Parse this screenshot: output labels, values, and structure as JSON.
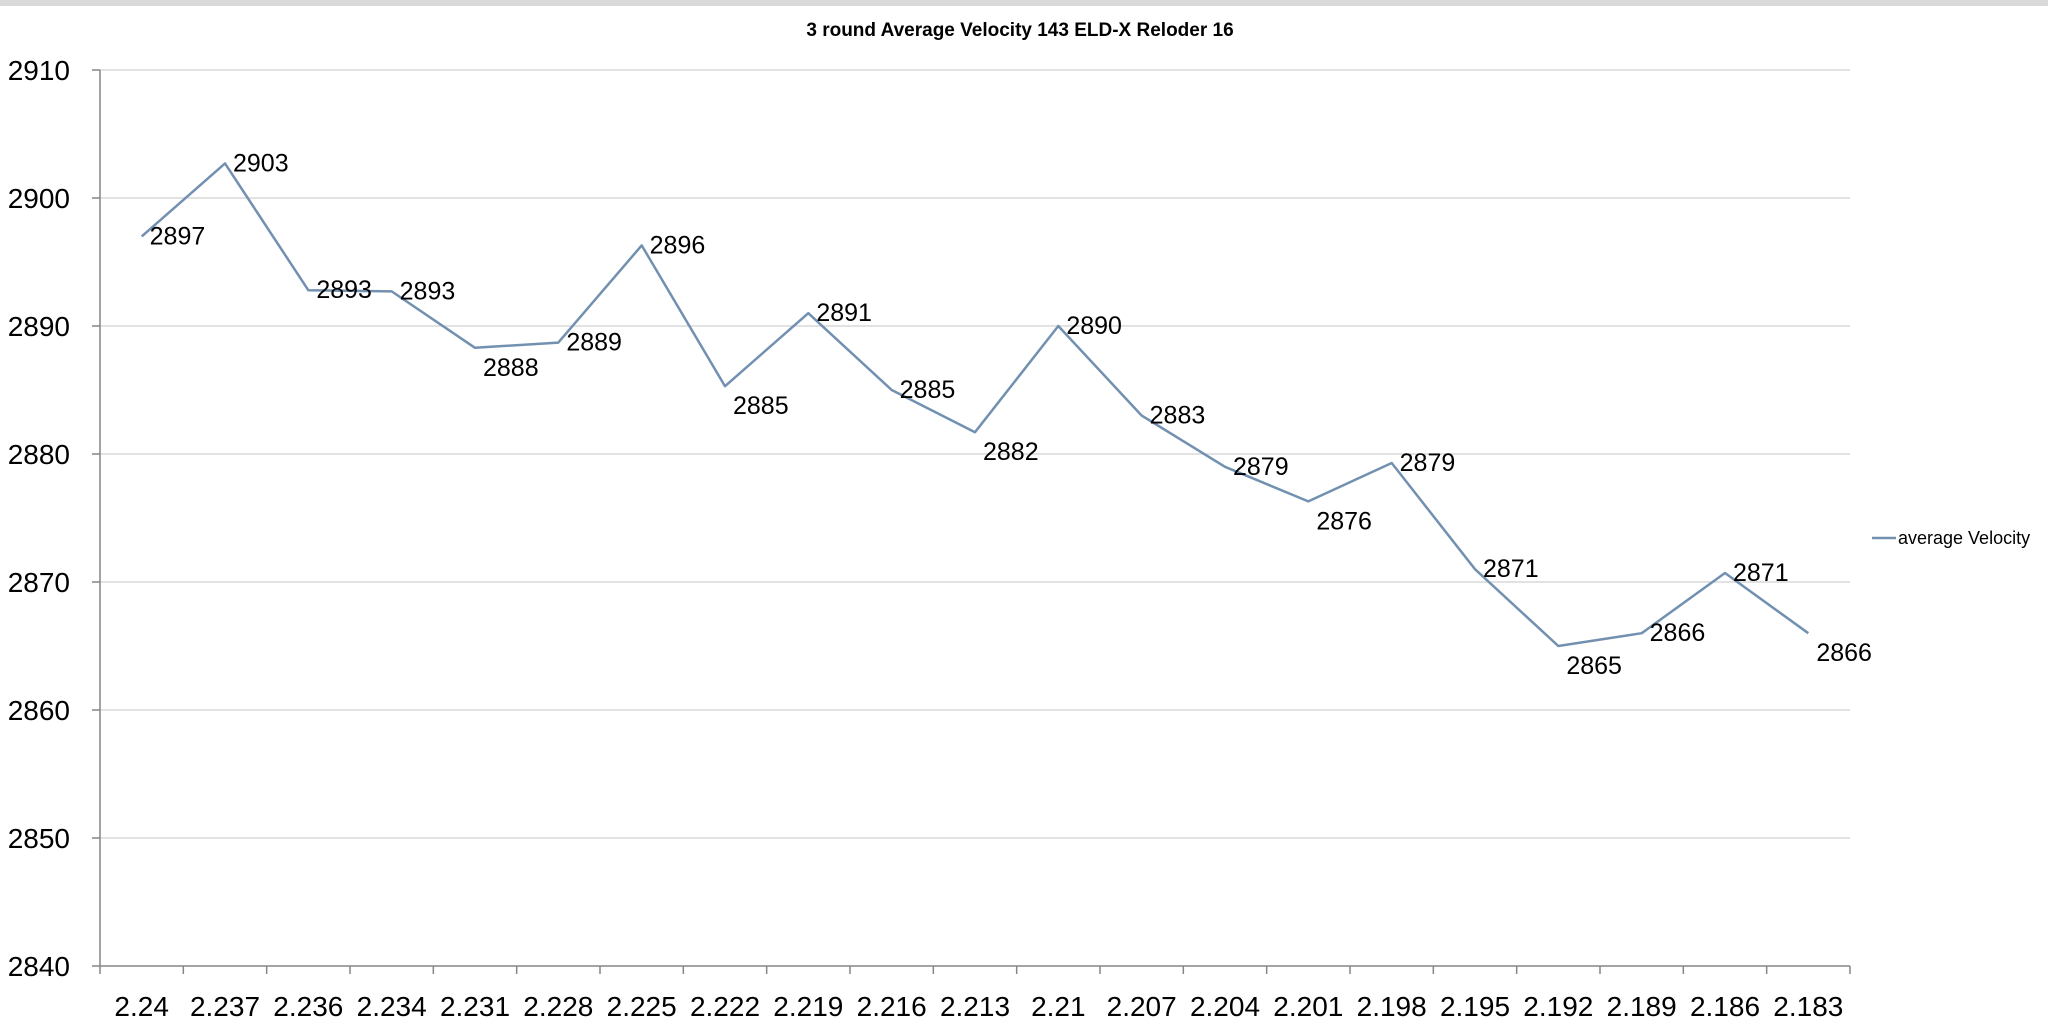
{
  "chart_data": {
    "type": "line",
    "title": "3 round Average Velocity 143 ELD-X Reloder 16",
    "xlabel": "",
    "ylabel": "",
    "categories": [
      "2.24",
      "2.237",
      "2.236",
      "2.234",
      "2.231",
      "2.228",
      "2.225",
      "2.222",
      "2.219",
      "2.216",
      "2.213",
      "2.21",
      "2.207",
      "2.204",
      "2.201",
      "2.198",
      "2.195",
      "2.192",
      "2.189",
      "2.186",
      "2.183"
    ],
    "series": [
      {
        "name": "average Velocity",
        "values": [
          2897,
          2902.7,
          2892.8,
          2892.7,
          2888.3,
          2888.7,
          2896.3,
          2885.3,
          2891,
          2885,
          2881.7,
          2890,
          2883,
          2879,
          2876.3,
          2879.3,
          2871,
          2865,
          2866,
          2870.7,
          2866
        ],
        "labels": [
          "2897",
          "2903",
          "2893",
          "2893",
          "2888",
          "2889",
          "2896",
          "2885",
          "2891",
          "2885",
          "2882",
          "2890",
          "2883",
          "2879",
          "2876",
          "2879",
          "2871",
          "2865",
          "2866",
          "2871",
          "2866"
        ],
        "color": "#7290b0"
      }
    ],
    "ylim": [
      2840,
      2910
    ],
    "yticks": [
      "2840",
      "2850",
      "2860",
      "2870",
      "2880",
      "2890",
      "2900",
      "2910"
    ],
    "grid": true,
    "legend": "right"
  }
}
